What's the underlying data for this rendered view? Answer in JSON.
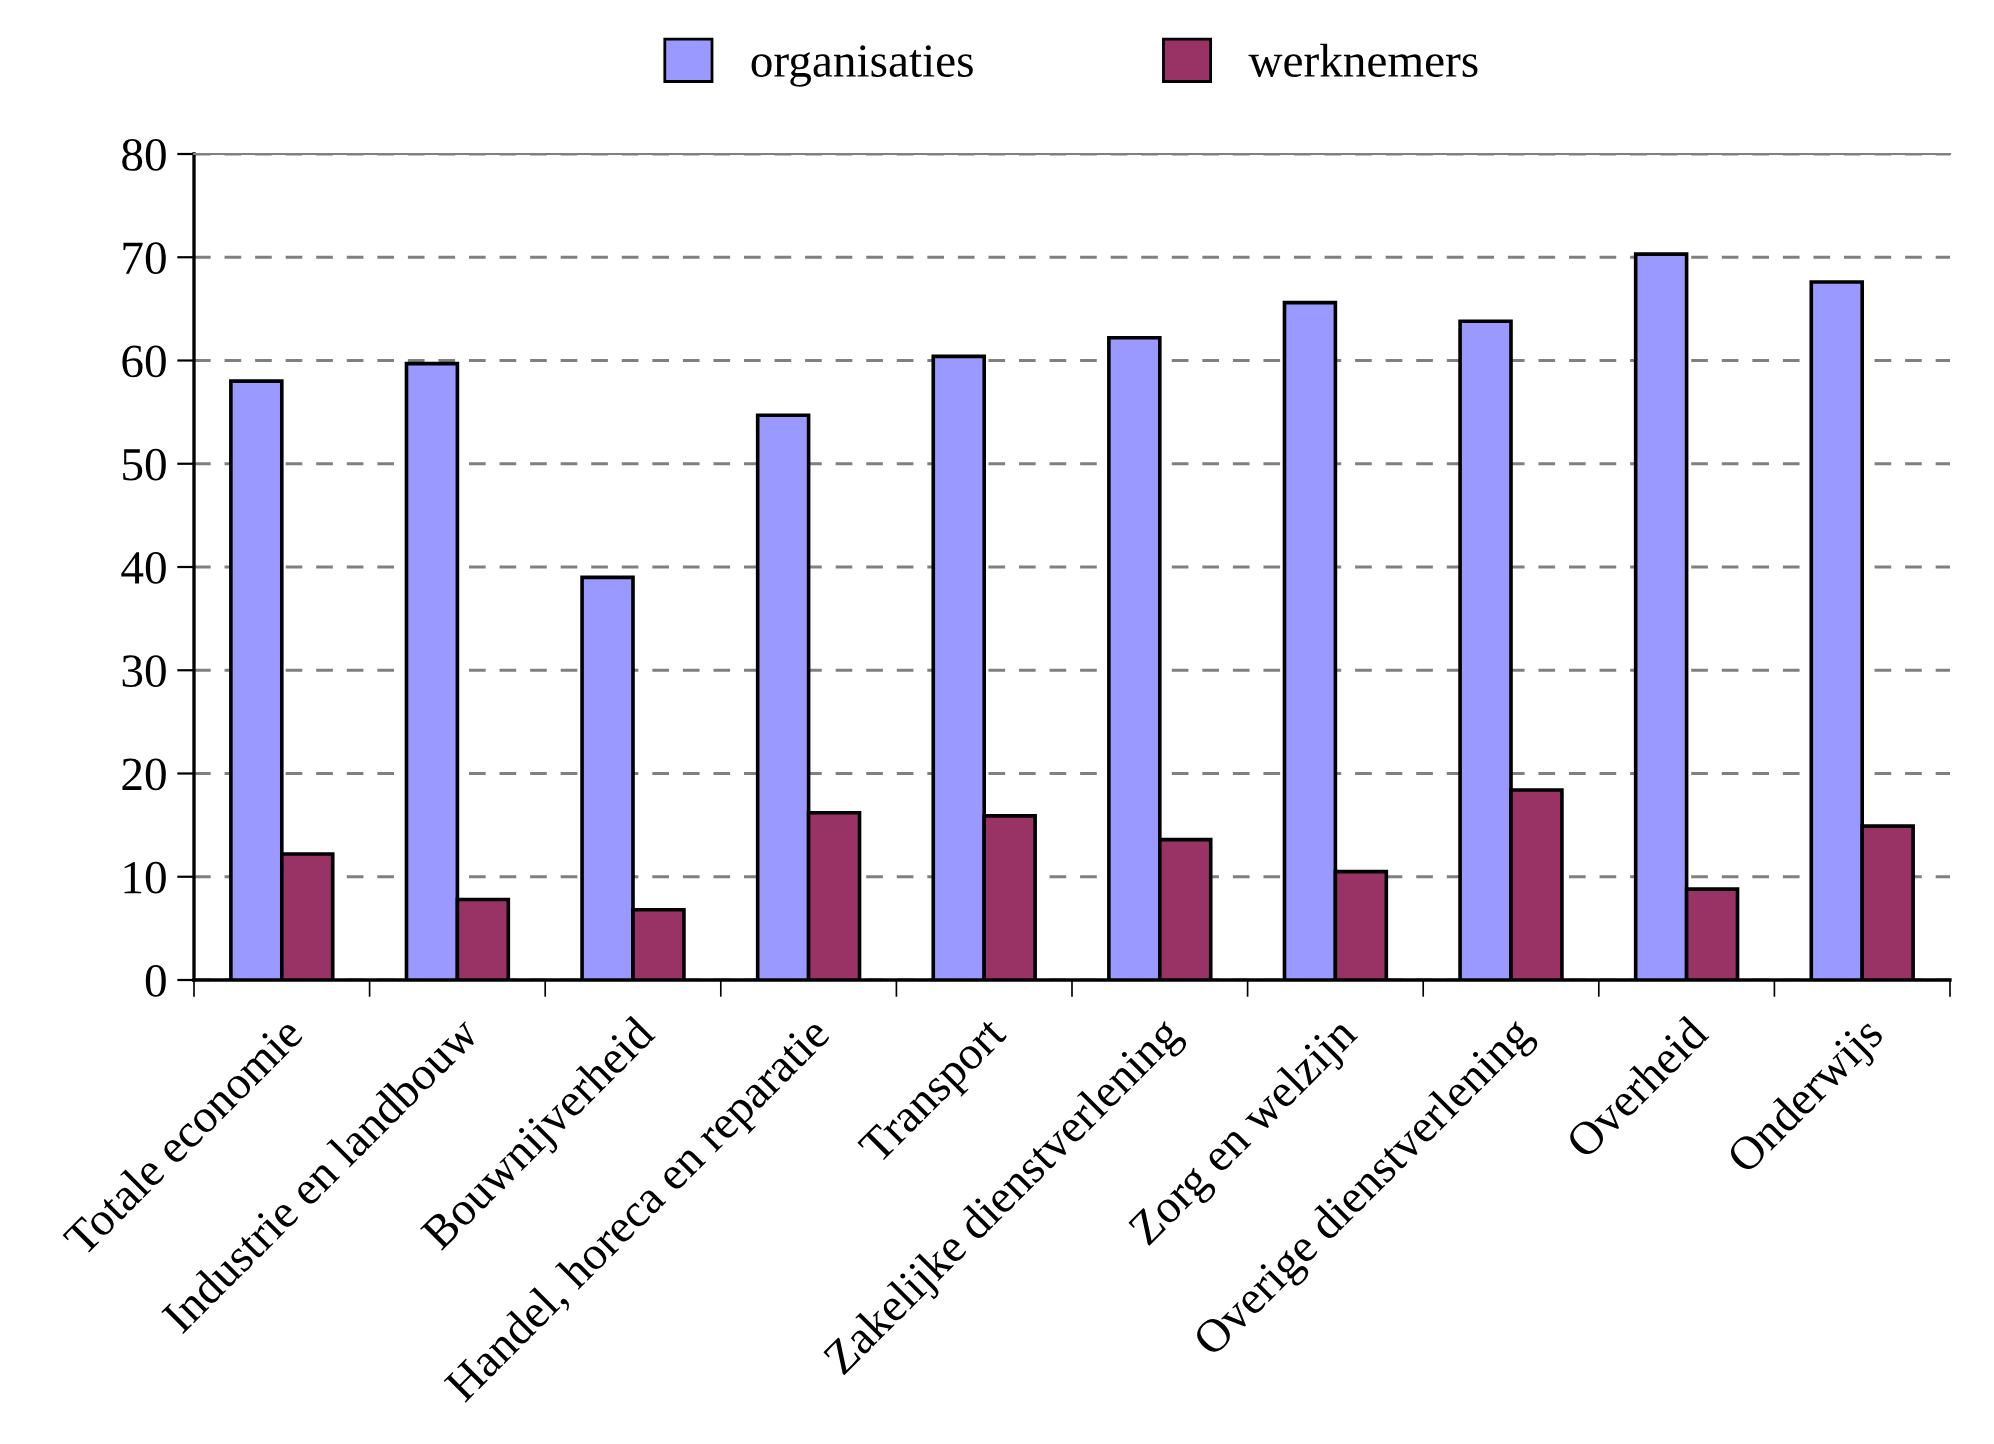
{
  "chart_data": {
    "type": "bar",
    "categories": [
      "Totale economie",
      "Industrie en landbouw",
      "Bouwnijverheid",
      "Handel, horeca en reparatie",
      "Transport",
      "Zakelijke dienstverlening",
      "Zorg en welzijn",
      "Overige dienstverlening",
      "Overheid",
      "Onderwijs"
    ],
    "series": [
      {
        "name": "organisaties",
        "color": "#9999ff",
        "values": [
          58.0,
          59.7,
          39.0,
          54.7,
          60.4,
          62.2,
          65.6,
          63.8,
          70.3,
          67.6
        ]
      },
      {
        "name": "werknemers",
        "color": "#993366",
        "values": [
          12.2,
          7.8,
          6.8,
          16.2,
          15.9,
          13.6,
          10.5,
          18.4,
          8.8,
          14.9
        ]
      }
    ],
    "ylim": [
      0,
      80
    ],
    "yticks": [
      0,
      10,
      20,
      30,
      40,
      50,
      60,
      70,
      80
    ],
    "grid": "y",
    "legend": "top"
  }
}
